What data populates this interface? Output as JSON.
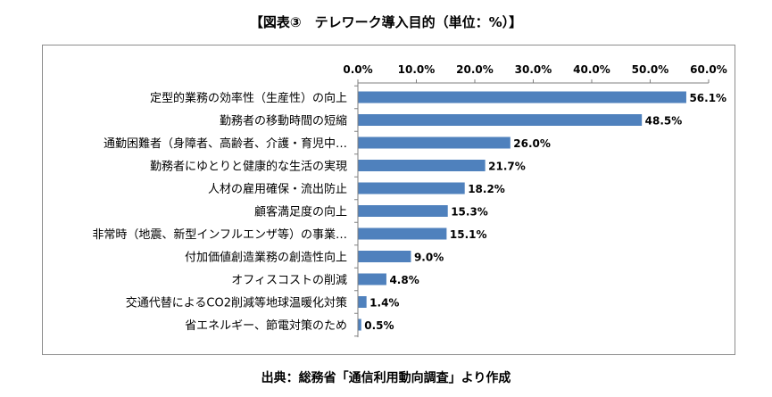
{
  "title": "【図表③　テレワーク導入目的（単位：%）】",
  "source": "出典：総務省「通信利用動向調査」より作成",
  "colors": {
    "bar": "#4f81bd",
    "axis": "#7f7f7f",
    "frame": "#8c8c8c"
  },
  "chart_data": {
    "type": "bar",
    "orientation": "horizontal",
    "title": "【図表③　テレワーク導入目的（単位：%）】",
    "xlim": [
      0,
      60
    ],
    "ticks": [
      0,
      10,
      20,
      30,
      40,
      50,
      60
    ],
    "tick_labels": [
      "0.0%",
      "10.0%",
      "20.0%",
      "30.0%",
      "40.0%",
      "50.0%",
      "60.0%"
    ],
    "axis_position": "top",
    "grid": false,
    "categories": [
      "定型的業務の効率性（生産性）の向上",
      "勤務者の移動時間の短縮",
      "通勤困難者（身障者、高齢者、介護・育児中…",
      "勤務者にゆとりと健康的な生活の実現",
      "人材の雇用確保・流出防止",
      "顧客満足度の向上",
      "非常時（地震、新型インフルエンザ等）の事業…",
      "付加価値創造業務の創造性向上",
      "オフィスコストの削減",
      "交通代替によるCO2削減等地球温暖化対策",
      "省エネルギー、節電対策のため"
    ],
    "values": [
      56.1,
      48.5,
      26.0,
      21.7,
      18.2,
      15.3,
      15.1,
      9.0,
      4.8,
      1.4,
      0.5
    ],
    "value_labels": [
      "56.1%",
      "48.5%",
      "26.0%",
      "21.7%",
      "18.2%",
      "15.3%",
      "15.1%",
      "9.0%",
      "4.8%",
      "1.4%",
      "0.5%"
    ]
  }
}
